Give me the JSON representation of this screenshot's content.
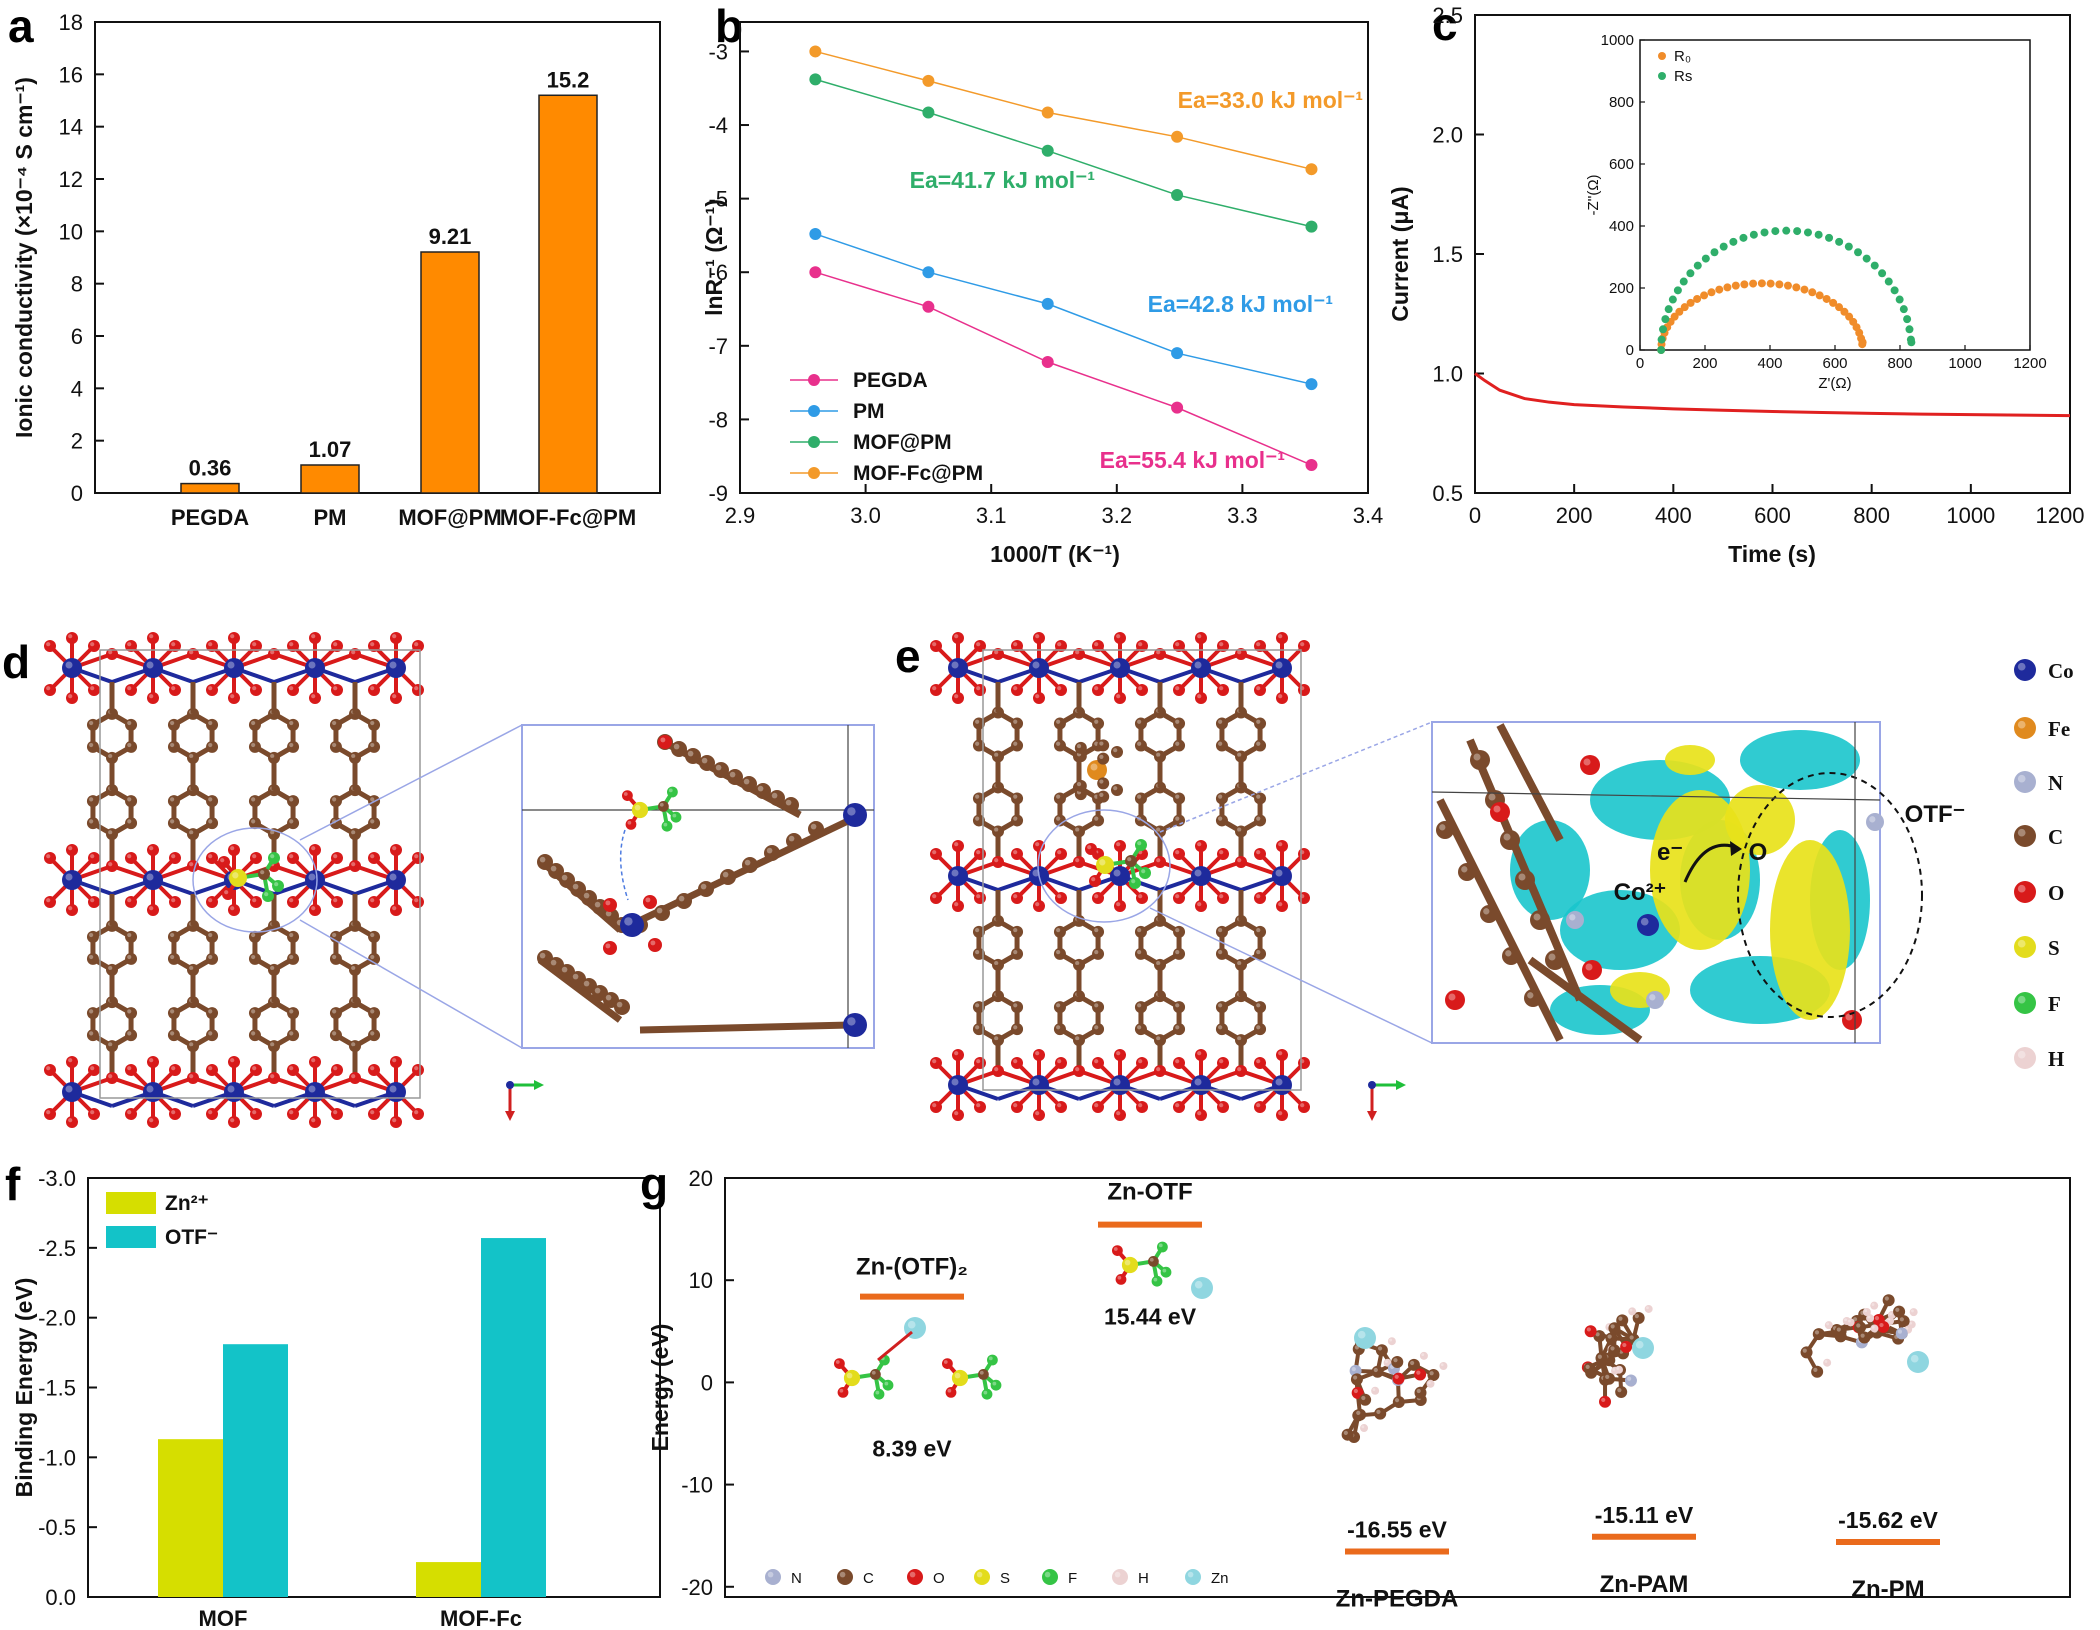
{
  "panels": {
    "a": "a",
    "b": "b",
    "c": "c",
    "d": "d",
    "e": "e",
    "f": "f",
    "g": "g"
  },
  "chart_data": [
    {
      "id": "a",
      "type": "bar",
      "ylabel": "Ionic conductivity (×10⁻⁴ S cm⁻¹)",
      "categories": [
        "PEGDA",
        "PM",
        "MOF@PM",
        "MOF-Fc@PM"
      ],
      "values": [
        0.36,
        1.07,
        9.21,
        15.2
      ],
      "value_labels": [
        "0.36",
        "1.07",
        "9.21",
        "15.2"
      ],
      "ylim": [
        0,
        18
      ],
      "yticks": [
        "0",
        "2",
        "4",
        "6",
        "8",
        "10",
        "12",
        "14",
        "16",
        "18"
      ],
      "bar_color": "#ff8a00"
    },
    {
      "id": "b",
      "type": "line",
      "xlabel": "1000/T (K⁻¹)",
      "ylabel": "lnR⁻¹ (Ω⁻¹)",
      "xlim": [
        2.9,
        3.4
      ],
      "ylim": [
        -9,
        -2.6
      ],
      "xticks": [
        "2.9",
        "3.0",
        "3.1",
        "3.2",
        "3.3",
        "3.4"
      ],
      "yticks": [
        "-9",
        "-8",
        "-7",
        "-6",
        "-5",
        "-4",
        "-3"
      ],
      "x": [
        2.96,
        3.05,
        3.145,
        3.248,
        3.355
      ],
      "series": [
        {
          "name": "PEGDA",
          "color": "#e8308c",
          "values": [
            -6.0,
            -6.47,
            -7.22,
            -7.84,
            -8.62
          ],
          "ea": "Ea=55.4 kJ mol⁻¹"
        },
        {
          "name": "PM",
          "color": "#2f9be6",
          "values": [
            -5.48,
            -6.0,
            -6.43,
            -7.1,
            -7.52
          ],
          "ea": "Ea=42.8 kJ mol⁻¹"
        },
        {
          "name": "MOF@PM",
          "color": "#2fae6a",
          "values": [
            -3.38,
            -3.83,
            -4.35,
            -4.95,
            -5.38
          ],
          "ea": "Ea=41.7 kJ mol⁻¹"
        },
        {
          "name": "MOF-Fc@PM",
          "color": "#f39a2a",
          "values": [
            -3.0,
            -3.4,
            -3.83,
            -4.16,
            -4.6
          ],
          "ea": "Ea=33.0 kJ mol⁻¹"
        }
      ],
      "legend": "bottom-left"
    },
    {
      "id": "c",
      "type": "line",
      "xlabel": "Time (s)",
      "ylabel": "Current (μA)",
      "xlim": [
        0,
        1200
      ],
      "ylim": [
        0.5,
        2.5
      ],
      "xticks": [
        "0",
        "200",
        "400",
        "600",
        "800",
        "1000",
        "1200"
      ],
      "yticks": [
        "0.5",
        "1.0",
        "1.5",
        "2.0",
        "2.5"
      ],
      "series": [
        {
          "name": "",
          "color": "#e02020",
          "x": [
            0,
            20,
            50,
            100,
            150,
            200,
            300,
            400,
            500,
            600,
            700,
            800,
            900,
            1000,
            1100,
            1200
          ],
          "values": [
            1.0,
            0.97,
            0.93,
            0.895,
            0.88,
            0.87,
            0.86,
            0.852,
            0.846,
            0.841,
            0.837,
            0.833,
            0.83,
            0.828,
            0.826,
            0.824
          ]
        }
      ],
      "inset": {
        "type": "scatter",
        "xlabel": "Z'(Ω)",
        "ylabel": "-Z''(Ω)",
        "xlim": [
          0,
          1200
        ],
        "ylim": [
          0,
          1000
        ],
        "xticks": [
          "0",
          "200",
          "400",
          "600",
          "800",
          "1000",
          "1200"
        ],
        "yticks": [
          "0",
          "200",
          "400",
          "600",
          "800",
          "1000"
        ],
        "series": [
          {
            "name": "R₀",
            "color": "#f08c2a",
            "center": 375,
            "radius": 310,
            "peak": 215
          },
          {
            "name": "Rs",
            "color": "#2fae6a",
            "center": 450,
            "radius": 385,
            "peak": 385
          }
        ],
        "legend": "top-left"
      }
    },
    {
      "id": "f",
      "type": "bar",
      "ylabel": "Binding Energy (eV)",
      "categories": [
        "MOF",
        "MOF-Fc"
      ],
      "series": [
        {
          "name": "Zn²⁺",
          "color": "#d6de00",
          "values": [
            -1.13,
            -0.25
          ]
        },
        {
          "name": "OTF⁻",
          "color": "#13c3c8",
          "values": [
            -1.81,
            -2.57
          ]
        }
      ],
      "ylim": [
        0,
        -3.0
      ],
      "yticks": [
        "0.0",
        "-0.5",
        "-1.0",
        "-1.5",
        "-2.0",
        "-2.5",
        "-3.0"
      ],
      "legend": "top-left"
    },
    {
      "id": "g",
      "type": "scatter",
      "ylabel": "Energy (eV)",
      "ylim": [
        -21,
        20
      ],
      "yticks": [
        "-20",
        "-10",
        "0",
        "10",
        "20"
      ],
      "levels": [
        {
          "name": "Zn-(OTF)₂",
          "energy": 8.39,
          "label": "8.39 eV"
        },
        {
          "name": "Zn-OTF",
          "energy": 15.44,
          "label": "15.44 eV"
        },
        {
          "name": "Zn-PEGDA",
          "energy": -16.55,
          "label": "-16.55 eV"
        },
        {
          "name": "Zn-PAM",
          "energy": -15.11,
          "label": "-15.11 eV"
        },
        {
          "name": "Zn-PM",
          "energy": -15.62,
          "label": "-15.62 eV"
        }
      ],
      "level_color": "#ea6a1c",
      "element_legend": [
        "N",
        "C",
        "O",
        "S",
        "F",
        "H",
        "Zn"
      ]
    }
  ],
  "legend_elements": [
    "Co",
    "Fe",
    "N",
    "C",
    "O",
    "S",
    "F",
    "H"
  ],
  "annotations": {
    "e_minus": "e⁻",
    "co2plus": "Co²⁺",
    "o": "O",
    "otf": "OTF⁻"
  },
  "colors": {
    "Co": "#1e2a9c",
    "Fe": "#e08a1e",
    "N": "#a8b0d0",
    "C": "#7a4a2c",
    "O": "#d81a1a",
    "S": "#e3dc1c",
    "F": "#35c445",
    "H": "#ecd2d2",
    "Zn": "#8fd6e0",
    "iso_yellow": "#e8e21a",
    "iso_cyan": "#19c5cc"
  }
}
